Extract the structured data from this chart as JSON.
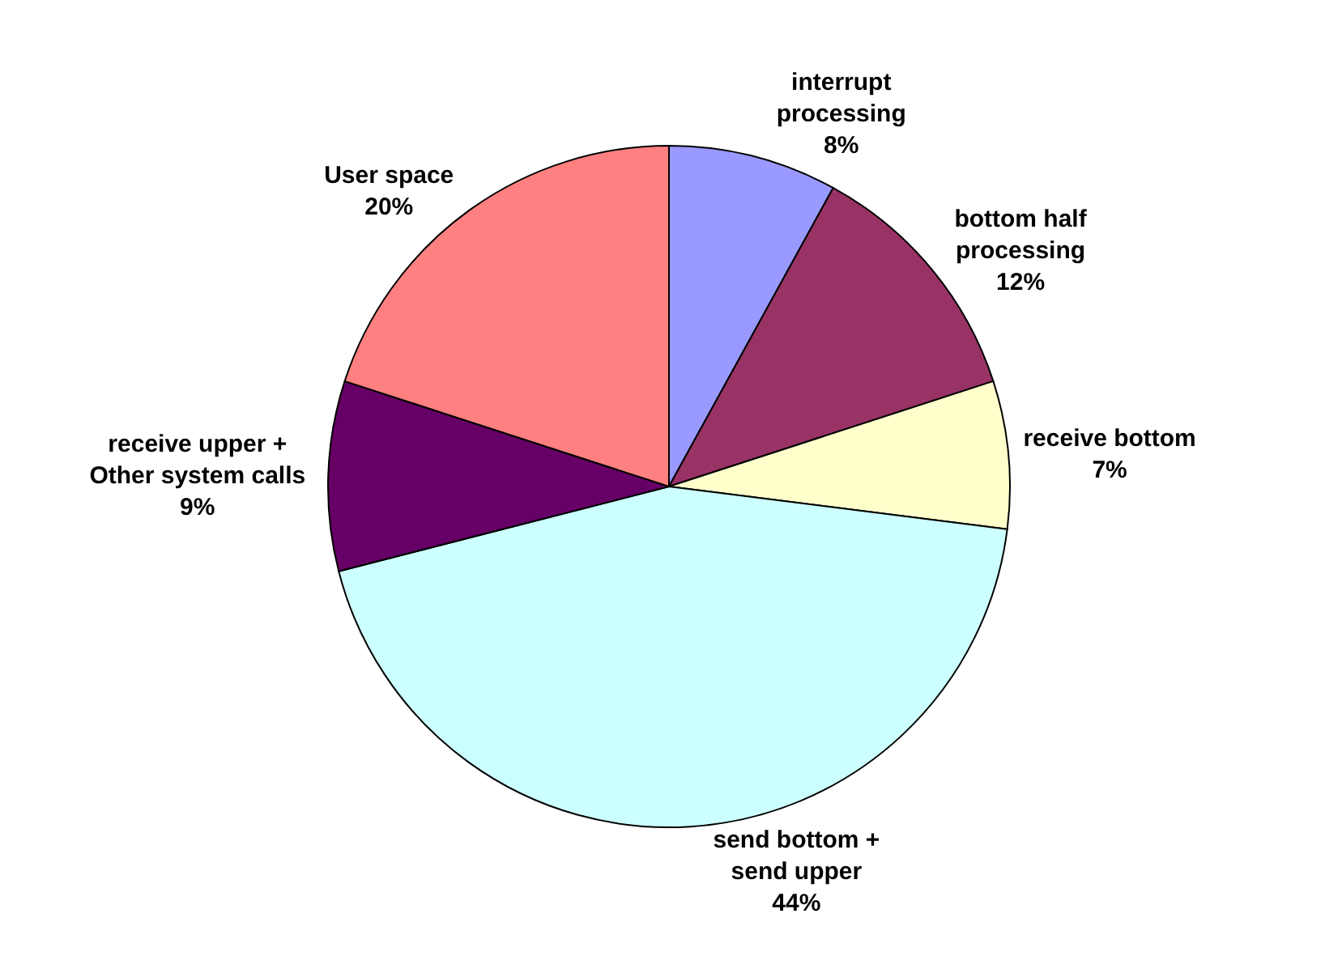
{
  "chart_data": {
    "type": "pie",
    "categories": [
      "interrupt processing",
      "bottom half processing",
      "receive bottom",
      "send bottom + send upper",
      "receive upper + Other system calls",
      "User space"
    ],
    "values": [
      8,
      12,
      7,
      44,
      9,
      20
    ],
    "value_labels": [
      "8%",
      "12%",
      "7%",
      "44%",
      "9%",
      "20%"
    ],
    "colors": [
      "#9999ff",
      "#993366",
      "#ffffcc",
      "#ccffff",
      "#660066",
      "#ff8080"
    ]
  }
}
